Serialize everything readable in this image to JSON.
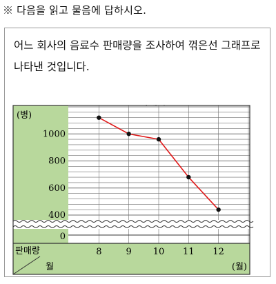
{
  "instruction": "※ 다음을 읽고 물음에 답하시오.",
  "description": "어느 회사의 음료수 판매량을 조사하여 꺾은선 그래프로 나타낸 것입니다.",
  "colors": {
    "panel": "#b8d89c",
    "line": "#e01a1a",
    "grid": "#6f6f6f",
    "border": "#9a9a9a"
  },
  "chart_data": {
    "type": "line",
    "title": "음료수 판매량",
    "xlabel": "월",
    "ylabel": "판매량",
    "y_unit": "(병)",
    "x_unit": "(월)",
    "corner_top": "판매량",
    "corner_bottom": "월",
    "x": [
      8,
      9,
      10,
      11,
      12
    ],
    "x_labels": [
      "8",
      "9",
      "10",
      "11",
      "12"
    ],
    "values": [
      1120,
      1000,
      960,
      680,
      440
    ],
    "ylim": [
      400,
      1200
    ],
    "y_break": [
      0,
      400
    ],
    "y_ticks": [
      1000,
      800,
      600,
      400
    ],
    "y_tick_labels": [
      "1000",
      "800",
      "600",
      "400"
    ],
    "y_zero_label": "0",
    "minor_step": 40,
    "grid": true
  }
}
